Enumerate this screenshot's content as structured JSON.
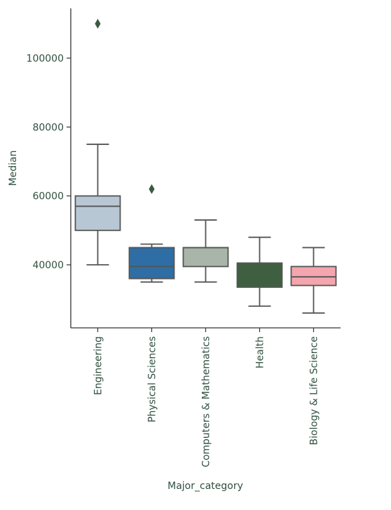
{
  "chart_data": {
    "type": "box",
    "title": "",
    "xlabel": "Major_category",
    "ylabel": "Median",
    "ylim": [
      22000,
      113000
    ],
    "yticks": [
      40000,
      60000,
      80000,
      100000
    ],
    "ytick_labels": [
      "40000",
      "60000",
      "80000",
      "100000"
    ],
    "grid": false,
    "categories": [
      "Engineering",
      "Physical Sciences",
      "Computers & Mathematics",
      "Health",
      "Biology & Life Science"
    ],
    "boxes": [
      {
        "category": "Engineering",
        "whisker_low": 40000,
        "q1": 50000,
        "median": 57000,
        "q3": 60000,
        "whisker_high": 75000,
        "outliers": [
          110000
        ],
        "color": "#b8c7d4"
      },
      {
        "category": "Physical Sciences",
        "whisker_low": 35000,
        "q1": 36000,
        "median": 39500,
        "q3": 45000,
        "whisker_high": 46000,
        "outliers": [
          62000
        ],
        "color": "#2e6ea5"
      },
      {
        "category": "Computers & Mathematics",
        "whisker_low": 35000,
        "q1": 39500,
        "median": 45000,
        "q3": 45000,
        "whisker_high": 53000,
        "outliers": [],
        "color": "#a9b5a8"
      },
      {
        "category": "Health",
        "whisker_low": 28000,
        "q1": 33500,
        "median": 40500,
        "q3": 40500,
        "whisker_high": 48000,
        "outliers": [],
        "color": "#3e6041"
      },
      {
        "category": "Biology & Life Science",
        "whisker_low": 26000,
        "q1": 34000,
        "median": 36500,
        "q3": 39500,
        "whisker_high": 45000,
        "outliers": [],
        "color": "#f4a5ad"
      }
    ]
  },
  "colors": {
    "axis": "#2f4f3f",
    "line": "#555555",
    "text": "#2f4f3f"
  }
}
